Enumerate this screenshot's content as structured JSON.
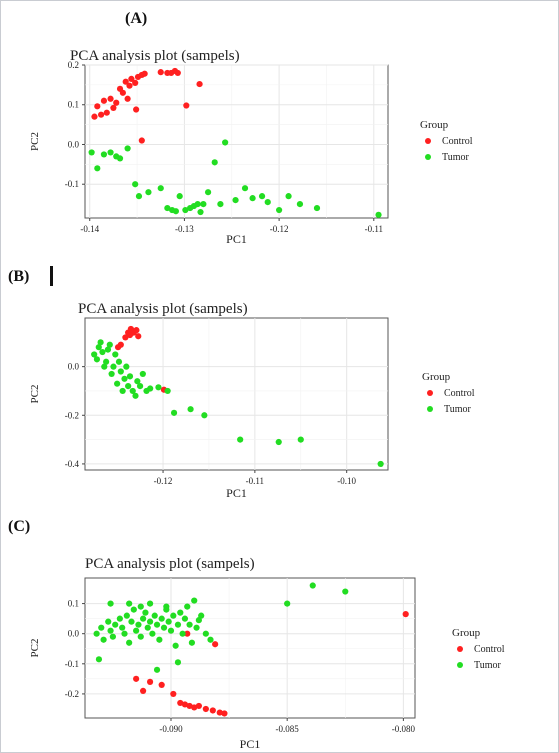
{
  "panels": [
    {
      "letter": "(A)"
    },
    {
      "letter": "(B)"
    },
    {
      "letter": "(C)"
    }
  ],
  "legend": {
    "title": "Group",
    "items": [
      {
        "label": "Control",
        "color": "#ff2020"
      },
      {
        "label": "Tumor",
        "color": "#22dd22"
      }
    ]
  },
  "chart_data": [
    {
      "type": "scatter",
      "title": "PCA analysis plot (sampels)",
      "xlabel": "PC1",
      "ylabel": "PC2",
      "xlim": [
        -0.1405,
        -0.1085
      ],
      "ylim": [
        -0.185,
        0.2
      ],
      "xticks": [
        -0.14,
        -0.13,
        -0.12,
        -0.11
      ],
      "xtick_labels": [
        "-0.14",
        "-0.13",
        "-0.12",
        "-0.11"
      ],
      "yticks": [
        0.2,
        0.1,
        0.0,
        -0.1
      ],
      "ytick_labels": [
        "0.2",
        "0.1",
        "0.0",
        "-0.1"
      ],
      "grid": true,
      "legend_position": "right",
      "series": [
        {
          "name": "Control",
          "color": "#ff2020",
          "points": [
            [
              -0.1392,
              0.096
            ],
            [
              -0.1395,
              0.07
            ],
            [
              -0.1388,
              0.075
            ],
            [
              -0.1382,
              0.08
            ],
            [
              -0.1385,
              0.11
            ],
            [
              -0.1378,
              0.115
            ],
            [
              -0.1375,
              0.092
            ],
            [
              -0.1372,
              0.105
            ],
            [
              -0.1368,
              0.14
            ],
            [
              -0.1365,
              0.13
            ],
            [
              -0.1362,
              0.158
            ],
            [
              -0.136,
              0.115
            ],
            [
              -0.1358,
              0.148
            ],
            [
              -0.1356,
              0.165
            ],
            [
              -0.1352,
              0.155
            ],
            [
              -0.1349,
              0.17
            ],
            [
              -0.1345,
              0.175
            ],
            [
              -0.1342,
              0.178
            ],
            [
              -0.1345,
              0.01
            ],
            [
              -0.1325,
              0.182
            ],
            [
              -0.1318,
              0.18
            ],
            [
              -0.1314,
              0.18
            ],
            [
              -0.131,
              0.185
            ],
            [
              -0.1307,
              0.18
            ],
            [
              -0.1298,
              0.098
            ],
            [
              -0.1284,
              0.152
            ],
            [
              -0.1351,
              0.088
            ]
          ]
        },
        {
          "name": "Tumor",
          "color": "#22dd22",
          "points": [
            [
              -0.1398,
              -0.02
            ],
            [
              -0.1392,
              -0.06
            ],
            [
              -0.1385,
              -0.025
            ],
            [
              -0.1378,
              -0.02
            ],
            [
              -0.1372,
              -0.03
            ],
            [
              -0.1368,
              -0.035
            ],
            [
              -0.136,
              -0.01
            ],
            [
              -0.1352,
              -0.1
            ],
            [
              -0.1348,
              -0.13
            ],
            [
              -0.1338,
              -0.12
            ],
            [
              -0.1325,
              -0.11
            ],
            [
              -0.1318,
              -0.16
            ],
            [
              -0.1313,
              -0.165
            ],
            [
              -0.1309,
              -0.168
            ],
            [
              -0.1305,
              -0.13
            ],
            [
              -0.1299,
              -0.165
            ],
            [
              -0.1294,
              -0.16
            ],
            [
              -0.129,
              -0.155
            ],
            [
              -0.1286,
              -0.15
            ],
            [
              -0.1283,
              -0.17
            ],
            [
              -0.128,
              -0.15
            ],
            [
              -0.1275,
              -0.12
            ],
            [
              -0.1268,
              -0.045
            ],
            [
              -0.1262,
              -0.15
            ],
            [
              -0.1257,
              0.005
            ],
            [
              -0.1246,
              -0.14
            ],
            [
              -0.1236,
              -0.11
            ],
            [
              -0.1228,
              -0.135
            ],
            [
              -0.1218,
              -0.13
            ],
            [
              -0.1212,
              -0.145
            ],
            [
              -0.12,
              -0.165
            ],
            [
              -0.119,
              -0.13
            ],
            [
              -0.1178,
              -0.15
            ],
            [
              -0.116,
              -0.16
            ],
            [
              -0.1095,
              -0.177
            ]
          ]
        }
      ]
    },
    {
      "type": "scatter",
      "title": "PCA analysis plot (sampels)",
      "xlabel": "PC1",
      "ylabel": "PC2",
      "xlim": [
        -0.1285,
        -0.0955
      ],
      "ylim": [
        -0.425,
        0.2
      ],
      "xticks": [
        -0.12,
        -0.11,
        -0.1
      ],
      "xtick_labels": [
        "-0.12",
        "-0.11",
        "-0.10"
      ],
      "yticks": [
        0.0,
        -0.2,
        -0.4
      ],
      "ytick_labels": [
        "0.0",
        "-0.2",
        "-0.4"
      ],
      "grid": true,
      "legend_position": "right",
      "series": [
        {
          "name": "Control",
          "color": "#ff2020",
          "points": [
            [
              -0.1241,
              0.12
            ],
            [
              -0.1238,
              0.14
            ],
            [
              -0.1235,
              0.155
            ],
            [
              -0.1232,
              0.14
            ],
            [
              -0.1229,
              0.15
            ],
            [
              -0.1246,
              0.09
            ],
            [
              -0.1249,
              0.08
            ],
            [
              -0.1236,
              0.13
            ],
            [
              -0.1227,
              0.125
            ],
            [
              -0.1199,
              -0.095
            ]
          ]
        },
        {
          "name": "Tumor",
          "color": "#22dd22",
          "points": [
            [
              -0.1275,
              0.05
            ],
            [
              -0.1272,
              0.03
            ],
            [
              -0.127,
              0.08
            ],
            [
              -0.1268,
              0.1
            ],
            [
              -0.1266,
              0.06
            ],
            [
              -0.1264,
              0.0
            ],
            [
              -0.1262,
              0.02
            ],
            [
              -0.126,
              0.07
            ],
            [
              -0.1258,
              0.09
            ],
            [
              -0.1256,
              -0.03
            ],
            [
              -0.1254,
              0.0
            ],
            [
              -0.1252,
              0.05
            ],
            [
              -0.125,
              -0.07
            ],
            [
              -0.1248,
              0.02
            ],
            [
              -0.1246,
              -0.02
            ],
            [
              -0.1244,
              -0.1
            ],
            [
              -0.1242,
              -0.05
            ],
            [
              -0.124,
              0.0
            ],
            [
              -0.1238,
              -0.08
            ],
            [
              -0.1236,
              -0.04
            ],
            [
              -0.1233,
              -0.1
            ],
            [
              -0.123,
              -0.12
            ],
            [
              -0.1228,
              -0.06
            ],
            [
              -0.1225,
              -0.08
            ],
            [
              -0.1222,
              -0.03
            ],
            [
              -0.1218,
              -0.1
            ],
            [
              -0.1214,
              -0.09
            ],
            [
              -0.1205,
              -0.085
            ],
            [
              -0.1195,
              -0.1
            ],
            [
              -0.1188,
              -0.19
            ],
            [
              -0.117,
              -0.175
            ],
            [
              -0.1155,
              -0.2
            ],
            [
              -0.1116,
              -0.3
            ],
            [
              -0.1074,
              -0.31
            ],
            [
              -0.105,
              -0.3
            ],
            [
              -0.0963,
              -0.4
            ]
          ]
        }
      ]
    },
    {
      "type": "scatter",
      "title": "PCA analysis plot (sampels)",
      "xlabel": "PC1",
      "ylabel": "PC2",
      "xlim": [
        -0.0937,
        -0.0795
      ],
      "ylim": [
        -0.28,
        0.185
      ],
      "xticks": [
        -0.09,
        -0.085,
        -0.08
      ],
      "xtick_labels": [
        "-0.090",
        "-0.085",
        "-0.080"
      ],
      "yticks": [
        0.1,
        0.0,
        -0.1,
        -0.2
      ],
      "ytick_labels": [
        "0.1",
        "0.0",
        "-0.1",
        "-0.2"
      ],
      "grid": true,
      "legend_position": "right",
      "series": [
        {
          "name": "Control",
          "color": "#ff2020",
          "points": [
            [
              -0.0915,
              -0.15
            ],
            [
              -0.0912,
              -0.19
            ],
            [
              -0.0909,
              -0.16
            ],
            [
              -0.0904,
              -0.17
            ],
            [
              -0.0899,
              -0.2
            ],
            [
              -0.0896,
              -0.23
            ],
            [
              -0.0894,
              -0.235
            ],
            [
              -0.0892,
              -0.24
            ],
            [
              -0.089,
              -0.245
            ],
            [
              -0.0888,
              -0.24
            ],
            [
              -0.0885,
              -0.25
            ],
            [
              -0.0882,
              -0.255
            ],
            [
              -0.0879,
              -0.262
            ],
            [
              -0.0877,
              -0.265
            ],
            [
              -0.0881,
              -0.035
            ],
            [
              -0.0893,
              0.0
            ],
            [
              -0.0799,
              0.065
            ]
          ]
        },
        {
          "name": "Tumor",
          "color": "#22dd22",
          "points": [
            [
              -0.0932,
              0.0
            ],
            [
              -0.093,
              0.02
            ],
            [
              -0.0929,
              -0.02
            ],
            [
              -0.0927,
              0.04
            ],
            [
              -0.0926,
              0.01
            ],
            [
              -0.0925,
              -0.01
            ],
            [
              -0.0924,
              0.03
            ],
            [
              -0.0922,
              0.05
            ],
            [
              -0.0921,
              0.02
            ],
            [
              -0.092,
              0.0
            ],
            [
              -0.0919,
              0.06
            ],
            [
              -0.0918,
              -0.03
            ],
            [
              -0.0917,
              0.04
            ],
            [
              -0.0916,
              0.08
            ],
            [
              -0.0915,
              0.01
            ],
            [
              -0.0914,
              0.03
            ],
            [
              -0.0913,
              -0.01
            ],
            [
              -0.0912,
              0.05
            ],
            [
              -0.0911,
              0.07
            ],
            [
              -0.091,
              0.02
            ],
            [
              -0.0909,
              0.04
            ],
            [
              -0.0908,
              0.0
            ],
            [
              -0.0907,
              0.06
            ],
            [
              -0.0906,
              0.03
            ],
            [
              -0.0905,
              -0.02
            ],
            [
              -0.0904,
              0.05
            ],
            [
              -0.0903,
              0.02
            ],
            [
              -0.0902,
              0.08
            ],
            [
              -0.0901,
              0.04
            ],
            [
              -0.09,
              0.01
            ],
            [
              -0.0899,
              0.06
            ],
            [
              -0.0898,
              -0.04
            ],
            [
              -0.0897,
              0.03
            ],
            [
              -0.0896,
              0.07
            ],
            [
              -0.0895,
              0.0
            ],
            [
              -0.0894,
              0.05
            ],
            [
              -0.0893,
              0.09
            ],
            [
              -0.0892,
              0.03
            ],
            [
              -0.0891,
              -0.03
            ],
            [
              -0.0889,
              0.02
            ],
            [
              -0.0887,
              0.06
            ],
            [
              -0.0885,
              0.0
            ],
            [
              -0.0883,
              -0.02
            ],
            [
              -0.0931,
              -0.085
            ],
            [
              -0.0906,
              -0.12
            ],
            [
              -0.0897,
              -0.095
            ],
            [
              -0.0888,
              0.045
            ],
            [
              -0.085,
              0.1
            ],
            [
              -0.0839,
              0.16
            ],
            [
              -0.0825,
              0.14
            ],
            [
              -0.0926,
              0.1
            ],
            [
              -0.0918,
              0.1
            ],
            [
              -0.0913,
              0.09
            ],
            [
              -0.0909,
              0.1
            ],
            [
              -0.0902,
              0.09
            ],
            [
              -0.089,
              0.11
            ]
          ]
        }
      ]
    }
  ]
}
